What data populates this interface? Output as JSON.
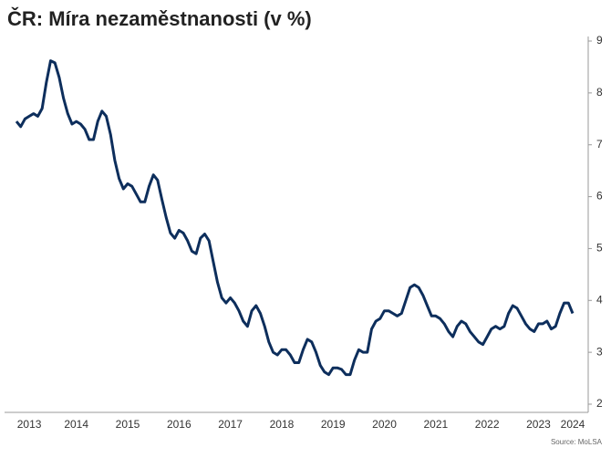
{
  "chart_data": {
    "type": "line",
    "title": "ČR: Míra nezaměstnanosti (v %)",
    "source": "Source: MoLSA",
    "categories": [
      null,
      null,
      null,
      "2013",
      null,
      null,
      null,
      null,
      null,
      null,
      null,
      null,
      null,
      null,
      "2014",
      null,
      null,
      null,
      null,
      null,
      null,
      null,
      null,
      null,
      null,
      null,
      "2015",
      null,
      null,
      null,
      null,
      null,
      null,
      null,
      null,
      null,
      null,
      null,
      "2016",
      null,
      null,
      null,
      null,
      null,
      null,
      null,
      null,
      null,
      null,
      null,
      "2017",
      null,
      null,
      null,
      null,
      null,
      null,
      null,
      null,
      null,
      null,
      null,
      "2018",
      null,
      null,
      null,
      null,
      null,
      null,
      null,
      null,
      null,
      null,
      null,
      "2019",
      null,
      null,
      null,
      null,
      null,
      null,
      null,
      null,
      null,
      null,
      null,
      "2020",
      null,
      null,
      null,
      null,
      null,
      null,
      null,
      null,
      null,
      null,
      null,
      "2021",
      null,
      null,
      null,
      null,
      null,
      null,
      null,
      null,
      null,
      null,
      null,
      "2022",
      null,
      null,
      null,
      null,
      null,
      null,
      null,
      null,
      null,
      null,
      null,
      "2023",
      null,
      null,
      null,
      null,
      null,
      null,
      null,
      "2024"
    ],
    "series": [
      {
        "name": "Míra nezaměstnanosti",
        "color": "#0d2e5c",
        "values": [
          7.45,
          7.35,
          7.5,
          7.55,
          7.6,
          7.55,
          7.7,
          8.2,
          8.62,
          8.58,
          8.3,
          7.9,
          7.6,
          7.4,
          7.45,
          7.4,
          7.3,
          7.1,
          7.1,
          7.45,
          7.65,
          7.55,
          7.2,
          6.7,
          6.35,
          6.15,
          6.25,
          6.2,
          6.05,
          5.9,
          5.9,
          6.2,
          6.42,
          6.32,
          5.95,
          5.6,
          5.3,
          5.2,
          5.35,
          5.3,
          5.15,
          4.95,
          4.9,
          5.2,
          5.28,
          5.15,
          4.75,
          4.35,
          4.05,
          3.95,
          4.05,
          3.95,
          3.8,
          3.6,
          3.5,
          3.8,
          3.9,
          3.75,
          3.5,
          3.2,
          3.0,
          2.95,
          3.05,
          3.05,
          2.95,
          2.8,
          2.8,
          3.05,
          3.25,
          3.2,
          3.0,
          2.75,
          2.62,
          2.57,
          2.7,
          2.7,
          2.67,
          2.57,
          2.57,
          2.85,
          3.05,
          3.0,
          3.0,
          3.45,
          3.6,
          3.65,
          3.8,
          3.8,
          3.75,
          3.7,
          3.75,
          4.0,
          4.25,
          4.3,
          4.25,
          4.1,
          3.9,
          3.7,
          3.7,
          3.65,
          3.55,
          3.4,
          3.3,
          3.5,
          3.6,
          3.55,
          3.4,
          3.3,
          3.2,
          3.15,
          3.3,
          3.45,
          3.5,
          3.45,
          3.5,
          3.75,
          3.9,
          3.85,
          3.7,
          3.55,
          3.45,
          3.4,
          3.55,
          3.55,
          3.6,
          3.45,
          3.5,
          3.75,
          3.95,
          3.95,
          3.75
        ]
      }
    ],
    "ylim": [
      2,
      9
    ],
    "yticks": [
      2,
      3,
      4,
      5,
      6,
      7,
      8,
      9
    ],
    "y_axis_side": "right",
    "grid": false
  }
}
